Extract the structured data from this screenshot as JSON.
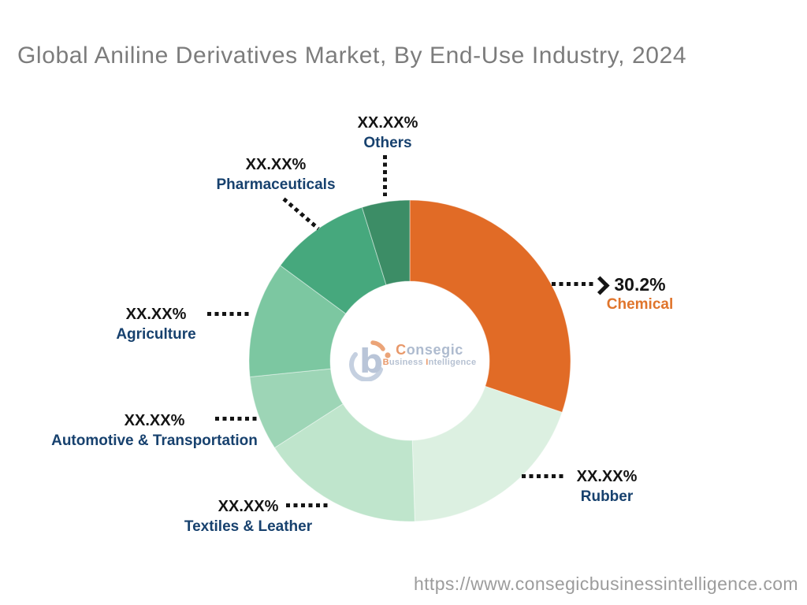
{
  "title": "Global Aniline Derivatives Market, By End-Use Industry, 2024",
  "footer": {
    "url": "https://www.consegicbusinessintelligence.com"
  },
  "logo": {
    "brand_first": "C",
    "brand_rest": "onsegic",
    "sub_first": "B",
    "sub_mid": "usiness ",
    "sub_i": "I",
    "sub_rest": "ntelligence"
  },
  "colors": {
    "accent_orange": "#E16B26",
    "label_navy": "#17416E",
    "value_black": "#141414",
    "title_gray": "#7C7C7C",
    "url_gray": "#9C9C9C",
    "logo_blue": "#BCC8DA",
    "logo_orange": "#E8986A"
  },
  "chart_data": {
    "type": "pie",
    "subtype": "donut",
    "title": "Global Aniline Derivatives Market, By End-Use Industry, 2024",
    "unit": "%",
    "start_angle_deg": 0,
    "legend_position": "callout-labels",
    "segments": [
      {
        "name": "Chemical",
        "value_label": "30.2%",
        "percent": 30.2,
        "color": "#E16B26",
        "label_color": "#E0752C"
      },
      {
        "name": "Rubber",
        "value_label": "XX.XX%",
        "percent": 19.3,
        "color": "#DCF0E1",
        "label_color": "#17416E"
      },
      {
        "name": "Textiles & Leather",
        "value_label": "XX.XX%",
        "percent": 16.4,
        "color": "#BFE5CC",
        "label_color": "#17416E"
      },
      {
        "name": "Automotive & Transportation",
        "value_label": "XX.XX%",
        "percent": 7.5,
        "color": "#9DD5B6",
        "label_color": "#17416E"
      },
      {
        "name": "Agriculture",
        "value_label": "XX.XX%",
        "percent": 11.7,
        "color": "#7CC7A1",
        "label_color": "#17416E"
      },
      {
        "name": "Pharmaceuticals",
        "value_label": "XX.XX%",
        "percent": 10.1,
        "color": "#46A87D",
        "label_color": "#17416E"
      },
      {
        "name": "Others",
        "value_label": "XX.XX%",
        "percent": 4.8,
        "color": "#3C8D66",
        "label_color": "#17416E"
      }
    ]
  }
}
